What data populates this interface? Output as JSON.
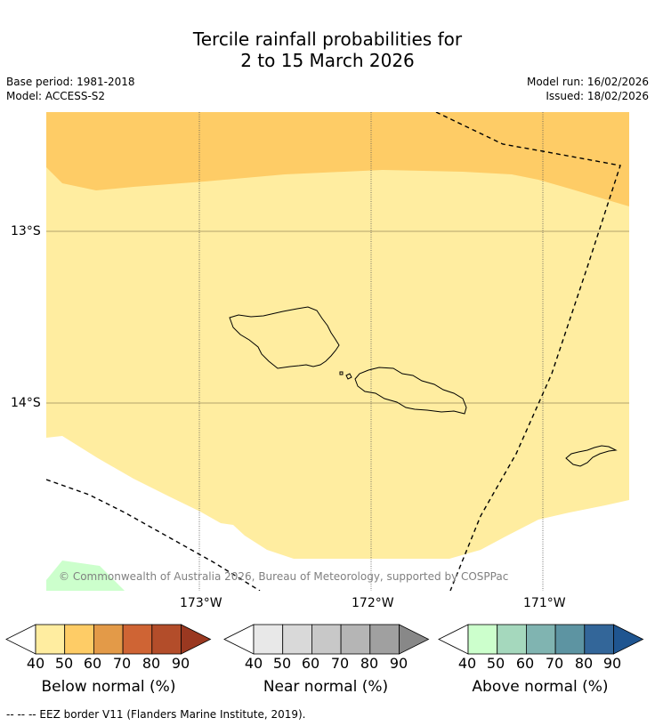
{
  "title": {
    "line1": "Tercile rainfall probabilities for",
    "line2": "2 to 15 March 2026"
  },
  "meta": {
    "base_period": "Base period: 1981-2018",
    "model": "Model: ACCESS-S2",
    "model_run": "Model run: 16/02/2026",
    "issued": "Issued: 18/02/2026"
  },
  "map": {
    "lat_labels": [
      "13°S",
      "14°S"
    ],
    "lon_labels": [
      "173°W",
      "172°W",
      "171°W"
    ],
    "copyright": "© Commonwealth of Australia 2026, Bureau of Meteorology, supported by COSPPac",
    "colors": {
      "below_40_50": "#ffeda0",
      "below_50_60": "#fecc66",
      "above_40_50": "#ccffcc"
    }
  },
  "colorbars": [
    {
      "title": "Below normal (%)",
      "ticks": [
        "40",
        "50",
        "60",
        "70",
        "80",
        "90"
      ],
      "colors": [
        "#ffeda0",
        "#fecc66",
        "#e39a48",
        "#cf6434",
        "#b34d2a",
        "#9a3820"
      ]
    },
    {
      "title": "Near normal (%)",
      "ticks": [
        "40",
        "50",
        "60",
        "70",
        "80",
        "90"
      ],
      "colors": [
        "#e8e8e8",
        "#d9d9d9",
        "#c8c8c8",
        "#b5b5b5",
        "#a0a0a0",
        "#888888"
      ]
    },
    {
      "title": "Above normal (%)",
      "ticks": [
        "40",
        "50",
        "60",
        "70",
        "80",
        "90"
      ],
      "colors": [
        "#ccffcc",
        "#a5d8bd",
        "#80b4b1",
        "#5d94a2",
        "#336699",
        "#1f5590"
      ]
    }
  ],
  "footer": "--  --  -- EEZ border V11 (Flanders Marine Institute, 2019)."
}
